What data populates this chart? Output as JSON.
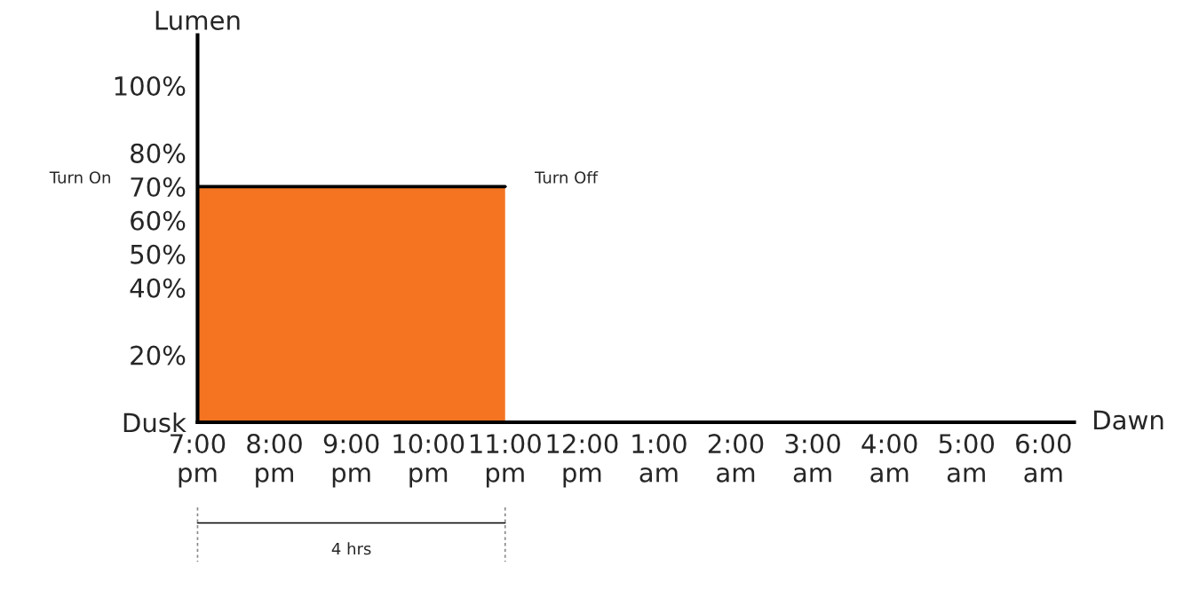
{
  "chart_data": {
    "type": "area",
    "ylabel": "Lumen",
    "xlabel": "Dawn",
    "categories": [
      "7:00\npm",
      "8:00\npm",
      "9:00\npm",
      "10:00\npm",
      "11:00\npm",
      "12:00\npm",
      "1:00\nam",
      "2:00\nam",
      "3:00\nam",
      "4:00\nam",
      "5:00\nam",
      "6:00\nam"
    ],
    "series": [
      {
        "color": "#f47421",
        "values": [
          70,
          70,
          70,
          70,
          70,
          null,
          null,
          null,
          null,
          null,
          null,
          null
        ]
      }
    ],
    "ylim": [
      0,
      115
    ],
    "yticks": [
      {
        "value": 0,
        "label": "Dusk"
      },
      {
        "value": 20,
        "label": "20%"
      },
      {
        "value": 40,
        "label": "40%"
      },
      {
        "value": 50,
        "label": "50%"
      },
      {
        "value": 60,
        "label": "60%"
      },
      {
        "value": 70,
        "label": "70%"
      },
      {
        "value": 80,
        "label": "80%"
      },
      {
        "value": 100,
        "label": "100%"
      }
    ],
    "annotations": [
      "Turn On",
      "Turn Off",
      "4 hrs"
    ],
    "grid": false,
    "legend": false
  }
}
